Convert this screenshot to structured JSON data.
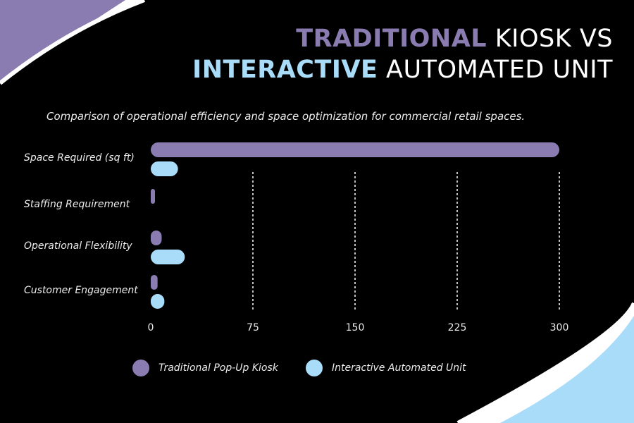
{
  "colors": {
    "background": "#000000",
    "traditional": "#8a7cb0",
    "interactive": "#a8dcf9",
    "text": "#ffffff"
  },
  "title": {
    "line1_highlight": "TRADITIONAL",
    "line1_rest": " KIOSK VS",
    "line2_highlight": "INTERACTIVE",
    "line2_rest": " AUTOMATED UNIT"
  },
  "subtitle": "Comparison of operational efficiency and space optimization for commercial retail spaces.",
  "legend": {
    "series_1": "Traditional Pop-Up Kiosk",
    "series_2": "Interactive Automated Unit"
  },
  "chart_data": {
    "type": "bar",
    "orientation": "horizontal",
    "categories": [
      "Space Required (sq ft)",
      "Staffing Requirement",
      "Operational Flexibility",
      "Customer Engagement"
    ],
    "series": [
      {
        "name": "Traditional Pop-Up Kiosk",
        "values": [
          300,
          2,
          8,
          5
        ]
      },
      {
        "name": "Interactive Automated Unit",
        "values": [
          20,
          0,
          25,
          10
        ]
      }
    ],
    "xlim": [
      0,
      300
    ],
    "xticks": [
      "0",
      "75",
      "150",
      "225",
      "300"
    ],
    "grid": "vertical dashed"
  }
}
